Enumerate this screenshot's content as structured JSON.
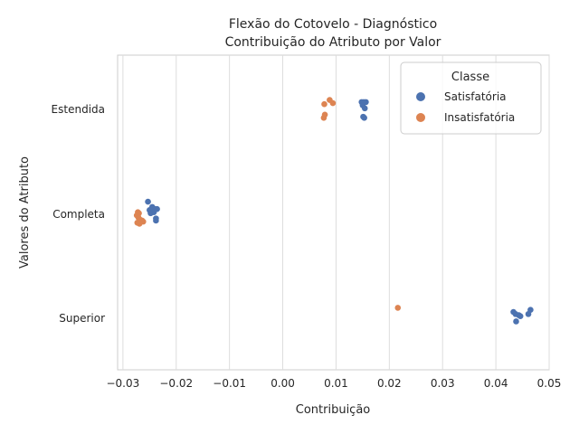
{
  "chart_data": {
    "type": "scatter",
    "title_lines": [
      "Flexão do Cotovelo - Diagnóstico",
      "Contribuição do Atributo por Valor"
    ],
    "xlabel": "Contribuição",
    "ylabel": "Valores do Atributo",
    "xlim": [
      -0.031,
      0.05
    ],
    "xticks": [
      -0.03,
      -0.02,
      -0.01,
      0.0,
      0.01,
      0.02,
      0.03,
      0.04,
      0.05
    ],
    "xtick_labels": [
      "−0.03",
      "−0.02",
      "−0.01",
      "0.00",
      "0.01",
      "0.02",
      "0.03",
      "0.04",
      "0.05"
    ],
    "categories": [
      "Estendida",
      "Completa",
      "Superior"
    ],
    "grid": true,
    "legend": {
      "title": "Classe",
      "position": "top-right"
    },
    "series": [
      {
        "name": "Satisfatória",
        "color": "#4c72b0",
        "points": [
          {
            "x": 0.0148,
            "cat": "Estendida",
            "jitter": 0.07
          },
          {
            "x": 0.0152,
            "cat": "Estendida",
            "jitter": 0.07
          },
          {
            "x": 0.0156,
            "cat": "Estendida",
            "jitter": 0.07
          },
          {
            "x": 0.015,
            "cat": "Estendida",
            "jitter": 0.04
          },
          {
            "x": 0.0154,
            "cat": "Estendida",
            "jitter": 0.01
          },
          {
            "x": 0.0151,
            "cat": "Estendida",
            "jitter": -0.07
          },
          {
            "x": 0.0153,
            "cat": "Estendida",
            "jitter": -0.08
          },
          {
            "x": -0.0253,
            "cat": "Completa",
            "jitter": 0.12
          },
          {
            "x": -0.0245,
            "cat": "Completa",
            "jitter": 0.07
          },
          {
            "x": -0.024,
            "cat": "Completa",
            "jitter": 0.05
          },
          {
            "x": -0.0236,
            "cat": "Completa",
            "jitter": 0.05
          },
          {
            "x": -0.025,
            "cat": "Completa",
            "jitter": 0.04
          },
          {
            "x": -0.0242,
            "cat": "Completa",
            "jitter": 0.02
          },
          {
            "x": -0.0248,
            "cat": "Completa",
            "jitter": 0.01
          },
          {
            "x": -0.0238,
            "cat": "Completa",
            "jitter": -0.04
          },
          {
            "x": -0.0238,
            "cat": "Completa",
            "jitter": -0.06
          },
          {
            "x": 0.0433,
            "cat": "Superior",
            "jitter": 0.06
          },
          {
            "x": 0.0437,
            "cat": "Superior",
            "jitter": 0.04
          },
          {
            "x": 0.0443,
            "cat": "Superior",
            "jitter": 0.03
          },
          {
            "x": 0.0446,
            "cat": "Superior",
            "jitter": 0.02
          },
          {
            "x": 0.0465,
            "cat": "Superior",
            "jitter": 0.08
          },
          {
            "x": 0.0461,
            "cat": "Superior",
            "jitter": 0.04
          },
          {
            "x": 0.0438,
            "cat": "Superior",
            "jitter": -0.03
          }
        ]
      },
      {
        "name": "Insatisfatória",
        "color": "#dd8452",
        "points": [
          {
            "x": 0.0088,
            "cat": "Estendida",
            "jitter": 0.09
          },
          {
            "x": 0.0094,
            "cat": "Estendida",
            "jitter": 0.06
          },
          {
            "x": 0.0078,
            "cat": "Estendida",
            "jitter": 0.05
          },
          {
            "x": 0.0079,
            "cat": "Estendida",
            "jitter": -0.05
          },
          {
            "x": 0.0077,
            "cat": "Estendida",
            "jitter": -0.08
          },
          {
            "x": -0.0272,
            "cat": "Completa",
            "jitter": 0.02
          },
          {
            "x": -0.027,
            "cat": "Completa",
            "jitter": 0.01
          },
          {
            "x": -0.0274,
            "cat": "Completa",
            "jitter": -0.01
          },
          {
            "x": -0.0271,
            "cat": "Completa",
            "jitter": -0.03
          },
          {
            "x": -0.0268,
            "cat": "Completa",
            "jitter": -0.05
          },
          {
            "x": -0.0264,
            "cat": "Completa",
            "jitter": -0.06
          },
          {
            "x": -0.0273,
            "cat": "Completa",
            "jitter": -0.08
          },
          {
            "x": -0.0262,
            "cat": "Completa",
            "jitter": -0.07
          },
          {
            "x": -0.0269,
            "cat": "Completa",
            "jitter": -0.09
          },
          {
            "x": 0.0216,
            "cat": "Superior",
            "jitter": 0.1
          }
        ]
      }
    ]
  }
}
